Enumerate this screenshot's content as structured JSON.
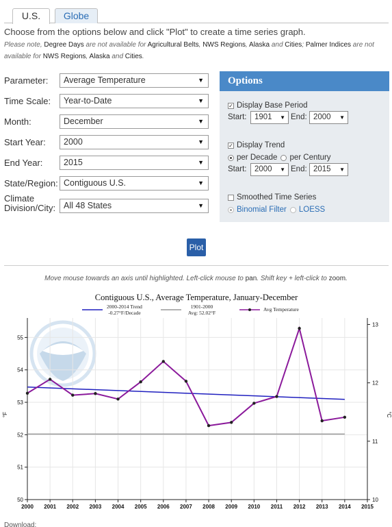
{
  "tabs": [
    {
      "label": "U.S.",
      "active": true
    },
    {
      "label": "Globe",
      "active": false
    }
  ],
  "intro": "Choose from the options below and click \"Plot\" to create a time series graph.",
  "note": {
    "p1": "Please note,",
    "b1": "Degree Days",
    "p2": "are not available for",
    "b2": "Agricultural Belts",
    "p3": ",",
    "b3": "NWS Regions",
    "p4": ",",
    "b4": "Alaska",
    "p5": "and",
    "b5": "Cities",
    "p6": ";",
    "b6": "Palmer Indices",
    "p7": "are not available for",
    "b7": "NWS Regions",
    "p8": ",",
    "b8": "Alaska",
    "p9": "and",
    "b9": "Cities",
    "p10": "."
  },
  "form": {
    "parameter": {
      "label": "Parameter:",
      "value": "Average Temperature"
    },
    "time_scale": {
      "label": "Time Scale:",
      "value": "Year-to-Date"
    },
    "month": {
      "label": "Month:",
      "value": "December"
    },
    "start_year": {
      "label": "Start Year:",
      "value": "2000"
    },
    "end_year": {
      "label": "End Year:",
      "value": "2015"
    },
    "state_region": {
      "label": "State/Region:",
      "value": "Contiguous U.S."
    },
    "climate_division": {
      "label_line1": "Climate",
      "label_line2": "Division/City:",
      "value": "All 48 States"
    }
  },
  "options": {
    "title": "Options",
    "display_base_period": {
      "label": "Display Base Period",
      "checked": true
    },
    "base_start_label": "Start:",
    "base_start": "1901",
    "base_end_label": "End:",
    "base_end": "2000",
    "display_trend": {
      "label": "Display Trend",
      "checked": true
    },
    "per_decade": "per Decade",
    "per_century": "per Century",
    "trend_start_label": "Start:",
    "trend_start": "2000",
    "trend_end_label": "End:",
    "trend_end": "2015",
    "smoothed": {
      "label": "Smoothed Time Series",
      "checked": false
    },
    "binomial": "Binomial Filter",
    "loess": "LOESS"
  },
  "plot_button": "Plot",
  "hint": {
    "p1": "Move mouse towards an axis until highlighted. Left-click mouse to",
    "b1": "pan",
    "p2": ". Shift key + left-click to",
    "b2": "zoom",
    "p3": "."
  },
  "downloads_label": "Download:",
  "colors": {
    "trend": "#1f1fbf",
    "base": "#999999",
    "series": "#8b1a9b",
    "options_header": "#4a89c8",
    "plot_button": "#2a5fa8"
  },
  "chart_data": {
    "type": "line",
    "title": "Contiguous U.S., Average Temperature, January-December",
    "ylabel_left": "°F",
    "ylabel_right": "°C",
    "legend": {
      "trend_line1": "2000-2014 Trend",
      "trend_line2": "-0.27°F/Decade",
      "base_line1": "1901-2000",
      "base_line2": "Avg: 52.02°F",
      "series": "Avg Temperature"
    },
    "x": [
      2000,
      2001,
      2002,
      2003,
      2004,
      2005,
      2006,
      2007,
      2008,
      2009,
      2010,
      2011,
      2012,
      2013,
      2014
    ],
    "xticks": [
      2000,
      2001,
      2002,
      2003,
      2004,
      2005,
      2006,
      2007,
      2008,
      2009,
      2010,
      2011,
      2012,
      2013,
      2014,
      2015
    ],
    "xlim": [
      2000,
      2015
    ],
    "series": [
      {
        "name": "Avg Temperature",
        "values": [
          53.28,
          53.71,
          53.22,
          53.27,
          53.1,
          53.63,
          54.26,
          53.65,
          52.28,
          52.38,
          52.97,
          53.18,
          55.28,
          52.43,
          52.54
        ]
      }
    ],
    "trend": {
      "x": [
        2000,
        2014
      ],
      "y": [
        53.47,
        53.09
      ]
    },
    "base_avg": 52.02,
    "yticks_left": [
      50,
      51,
      52,
      53,
      54,
      55
    ],
    "ylim_left": [
      50,
      55.6
    ],
    "yticks_right": [
      10,
      11,
      12,
      13
    ],
    "grid": true
  }
}
